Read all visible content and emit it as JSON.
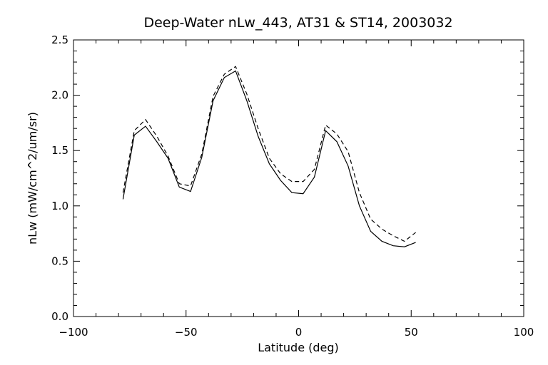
{
  "chart_data": {
    "type": "line",
    "title": "Deep-Water nLw_443, AT31 & ST14, 2003032",
    "xlabel": "Latitude (deg)",
    "ylabel": "nLw (mW/cm^2/um/sr)",
    "xlim": [
      -100,
      100
    ],
    "ylim": [
      0.0,
      2.5
    ],
    "xticks": [
      -100,
      -50,
      0,
      50,
      100
    ],
    "yticks": [
      0.0,
      0.5,
      1.0,
      1.5,
      2.0,
      2.5
    ],
    "xtick_labels": [
      "−100",
      "−50",
      "0",
      "50",
      "100"
    ],
    "ytick_labels": [
      "0.0",
      "0.5",
      "1.0",
      "1.5",
      "2.0",
      "2.5"
    ],
    "grid": false,
    "legend": "none",
    "series": [
      {
        "style": "solid",
        "x": [
          -78,
          -73,
          -68,
          -63,
          -58,
          -53,
          -48,
          -43,
          -38,
          -33,
          -28,
          -23,
          -18,
          -13,
          -8,
          -3,
          2,
          7,
          12,
          17,
          22,
          27,
          32,
          37,
          42,
          47,
          52
        ],
        "y": [
          1.06,
          1.64,
          1.72,
          1.58,
          1.43,
          1.17,
          1.13,
          1.44,
          1.95,
          2.16,
          2.22,
          1.95,
          1.63,
          1.38,
          1.23,
          1.12,
          1.11,
          1.26,
          1.68,
          1.58,
          1.36,
          1.0,
          0.77,
          0.68,
          0.64,
          0.63,
          0.67
        ]
      },
      {
        "style": "dashed",
        "x": [
          -78,
          -73,
          -68,
          -63,
          -58,
          -53,
          -48,
          -43,
          -38,
          -33,
          -28,
          -23,
          -18,
          -13,
          -8,
          -3,
          2,
          7,
          12,
          17,
          22,
          27,
          32,
          37,
          42,
          47,
          52
        ],
        "y": [
          1.12,
          1.68,
          1.78,
          1.63,
          1.45,
          1.2,
          1.18,
          1.47,
          1.99,
          2.19,
          2.26,
          2.01,
          1.7,
          1.43,
          1.29,
          1.22,
          1.22,
          1.33,
          1.73,
          1.65,
          1.49,
          1.12,
          0.88,
          0.79,
          0.73,
          0.68,
          0.76
        ]
      }
    ]
  }
}
